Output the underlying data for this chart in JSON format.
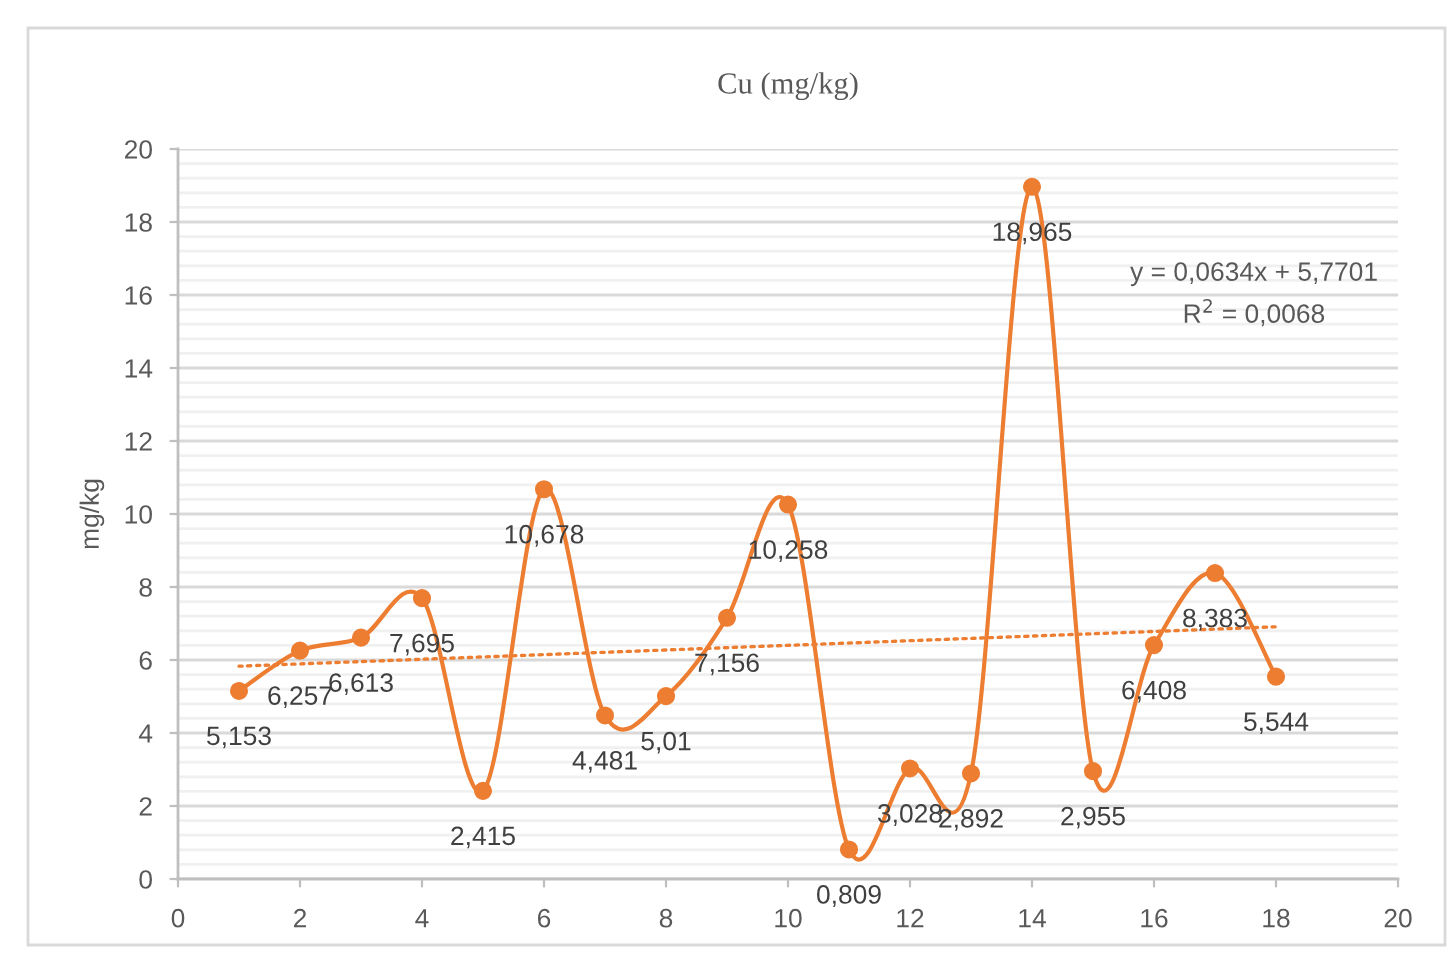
{
  "chart_data": {
    "type": "line",
    "title": "Cu (mg/kg)",
    "ylabel": "mg/kg",
    "x": [
      1,
      2,
      3,
      4,
      5,
      6,
      7,
      8,
      9,
      10,
      11,
      12,
      13,
      14,
      15,
      16,
      17,
      18
    ],
    "series": [
      {
        "color": "#ed7d31",
        "marker": "circle",
        "line_style": "solid",
        "values": [
          5.153,
          6.257,
          6.613,
          7.695,
          2.415,
          10.678,
          4.481,
          5.01,
          7.156,
          10.258,
          0.809,
          3.028,
          2.892,
          18.965,
          2.955,
          6.408,
          8.383,
          5.544
        ],
        "value_labels": [
          "5,153",
          "6,257",
          "6,613",
          "7,695",
          "2,415",
          "10,678",
          "4,481",
          "5,01",
          "7,156",
          "10,258",
          "0,809",
          "3,028",
          "2,892",
          "18,965",
          "2,955",
          "6,408",
          "8,383",
          "5,544"
        ]
      },
      {
        "type": "line",
        "color": "#ed7d31",
        "marker": "none",
        "line_style": "dotted",
        "x": [
          1,
          18
        ],
        "values": [
          5.83,
          6.91
        ]
      }
    ],
    "xlim": [
      0,
      20
    ],
    "xticks": [
      0,
      2,
      4,
      6,
      8,
      10,
      12,
      14,
      16,
      18,
      20
    ],
    "ylim": [
      0,
      20
    ],
    "yticks": [
      0,
      {
        "value": 0.4,
        "label": null
      },
      {
        "value": 0.8,
        "label": null
      },
      {
        "value": 1.2,
        "label": null
      },
      {
        "value": 1.6,
        "label": null
      },
      2,
      {
        "value": 2.4,
        "label": null
      },
      {
        "value": 2.8,
        "label": null
      },
      {
        "value": 3.2,
        "label": null
      },
      {
        "value": 3.6,
        "label": null
      },
      4,
      {
        "value": 4.4,
        "label": null
      },
      {
        "value": 4.8,
        "label": null
      },
      {
        "value": 5.2,
        "label": null
      },
      {
        "value": 5.6,
        "label": null
      },
      6,
      {
        "value": 6.4,
        "label": null
      },
      {
        "value": 6.8,
        "label": null
      },
      {
        "value": 7.2,
        "label": null
      },
      {
        "value": 7.6,
        "label": null
      },
      8,
      {
        "value": 8.4,
        "label": null
      },
      {
        "value": 8.8,
        "label": null
      },
      {
        "value": 9.2,
        "label": null
      },
      {
        "value": 9.6,
        "label": null
      },
      10,
      {
        "value": 10.4,
        "label": null
      },
      {
        "value": 10.8,
        "label": null
      },
      {
        "value": 11.2,
        "label": null
      },
      {
        "value": 11.6,
        "label": null
      },
      12,
      {
        "value": 12.4,
        "label": null
      },
      {
        "value": 12.8,
        "label": null
      },
      {
        "value": 13.2,
        "label": null
      },
      {
        "value": 13.6,
        "label": null
      },
      14,
      {
        "value": 14.4,
        "label": null
      },
      {
        "value": 14.8,
        "label": null
      },
      {
        "value": 15.2,
        "label": null
      },
      {
        "value": 15.6,
        "label": null
      },
      16,
      {
        "value": 16.4,
        "label": null
      },
      {
        "value": 16.8,
        "label": null
      },
      {
        "value": 17.2,
        "label": null
      },
      {
        "value": 17.6,
        "label": null
      },
      18,
      {
        "value": 18.4,
        "label": null
      },
      {
        "value": 18.8,
        "label": null
      },
      {
        "value": 19.2,
        "label": null
      },
      {
        "value": 19.6,
        "label": null
      },
      20
    ],
    "grid": "y",
    "annotations": [
      "y = 0,0634x + 5,7701",
      "R$^{2}$ = 0,0068"
    ]
  }
}
